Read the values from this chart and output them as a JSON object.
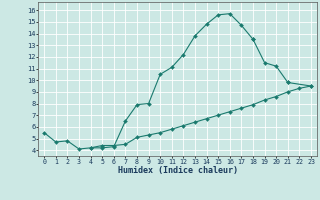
{
  "title": "",
  "xlabel": "Humidex (Indice chaleur)",
  "background_color": "#cce8e4",
  "grid_color": "#ffffff",
  "line_color": "#1a7a6e",
  "xlim": [
    -0.5,
    23.5
  ],
  "ylim": [
    3.5,
    16.7
  ],
  "xticks": [
    0,
    1,
    2,
    3,
    4,
    5,
    6,
    7,
    8,
    9,
    10,
    11,
    12,
    13,
    14,
    15,
    16,
    17,
    18,
    19,
    20,
    21,
    22,
    23
  ],
  "yticks": [
    4,
    5,
    6,
    7,
    8,
    9,
    10,
    11,
    12,
    13,
    14,
    15,
    16
  ],
  "line_sets": [
    {
      "x": [
        0,
        1,
        2,
        3,
        4,
        5,
        6,
        7,
        8,
        9,
        10,
        11,
        12,
        13,
        14,
        15,
        16,
        17,
        18
      ],
      "y": [
        5.5,
        4.7,
        4.8,
        4.1,
        4.2,
        4.2,
        4.3,
        6.5,
        7.9,
        8.0,
        10.5,
        11.1,
        12.2,
        13.8,
        14.8,
        15.6,
        15.7,
        14.7,
        13.5
      ]
    },
    {
      "x": [
        18,
        19,
        20,
        21
      ],
      "y": [
        13.5,
        11.5,
        11.2,
        9.8
      ]
    },
    {
      "x": [
        4,
        5,
        6,
        7,
        8,
        9,
        10,
        11,
        12,
        13,
        14,
        15,
        16,
        17,
        18,
        19,
        20,
        21,
        22,
        23
      ],
      "y": [
        4.2,
        4.4,
        4.4,
        4.5,
        5.1,
        5.3,
        5.5,
        5.8,
        6.1,
        6.4,
        6.7,
        7.0,
        7.3,
        7.6,
        7.9,
        8.3,
        8.6,
        9.0,
        9.3,
        9.5
      ]
    },
    {
      "x": [
        21,
        23
      ],
      "y": [
        9.8,
        9.5
      ]
    }
  ],
  "xlabel_fontsize": 6.0,
  "tick_fontsize": 4.8,
  "marker_size": 2.0,
  "linewidth": 0.8
}
